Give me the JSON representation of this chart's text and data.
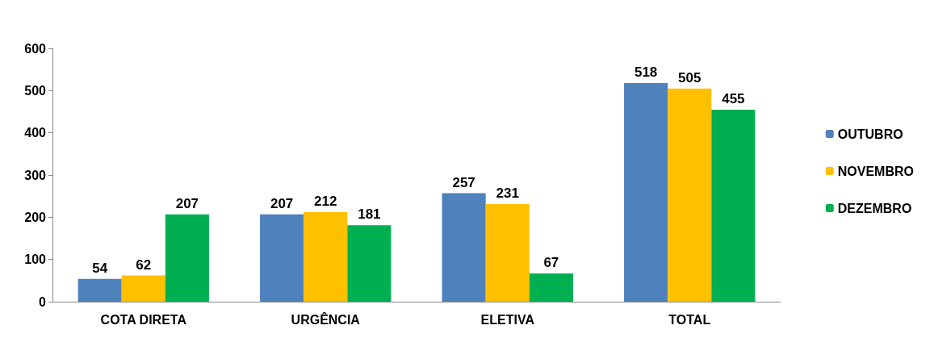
{
  "chart_data": {
    "type": "bar",
    "categories": [
      "COTA DIRETA",
      "URGÊNCIA",
      "ELETIVA",
      "TOTAL"
    ],
    "series": [
      {
        "name": "OUTUBRO",
        "color": "#4f81bd",
        "values": [
          54,
          207,
          257,
          518
        ]
      },
      {
        "name": "NOVEMBRO",
        "color": "#ffc000",
        "values": [
          62,
          212,
          231,
          505
        ]
      },
      {
        "name": "DEZEMBRO",
        "color": "#00b050",
        "values": [
          207,
          181,
          67,
          455
        ]
      }
    ],
    "ylim": [
      0,
      600
    ],
    "yticks": [
      0,
      100,
      200,
      300,
      400,
      500,
      600
    ],
    "grid": false,
    "legend": "right",
    "data_labels": true
  }
}
